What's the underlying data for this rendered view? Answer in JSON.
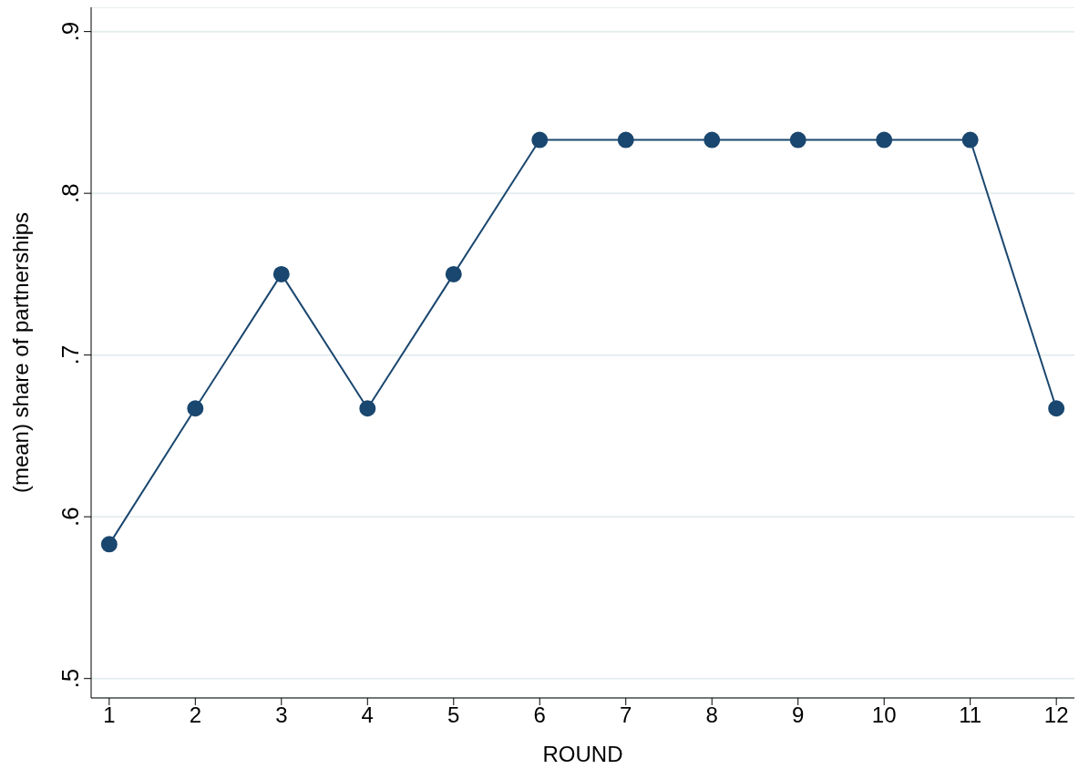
{
  "chart_data": {
    "type": "line",
    "xlabel": "ROUND",
    "ylabel": "(mean) share of partnerships",
    "x": [
      1,
      2,
      3,
      4,
      5,
      6,
      7,
      8,
      9,
      10,
      11,
      12
    ],
    "series": [
      {
        "color": "#1a476f",
        "values": [
          0.583,
          0.667,
          0.75,
          0.667,
          0.75,
          0.833,
          0.833,
          0.833,
          0.833,
          0.833,
          0.833,
          0.667
        ]
      }
    ],
    "xlim": [
      0.79,
      12.21
    ],
    "xticks": [
      1,
      2,
      3,
      4,
      5,
      6,
      7,
      8,
      9,
      10,
      11,
      12
    ],
    "ylim": [
      0.488,
      0.915
    ],
    "yticks": [
      {
        "value": 0.5,
        "label": ".5"
      },
      {
        "value": 0.6,
        "label": ".6"
      },
      {
        "value": 0.7,
        "label": ".7"
      },
      {
        "value": 0.8,
        "label": ".8"
      },
      {
        "value": 0.9,
        "label": ".9"
      }
    ],
    "grid": "y",
    "marker": "circle",
    "line_style": "solid"
  }
}
